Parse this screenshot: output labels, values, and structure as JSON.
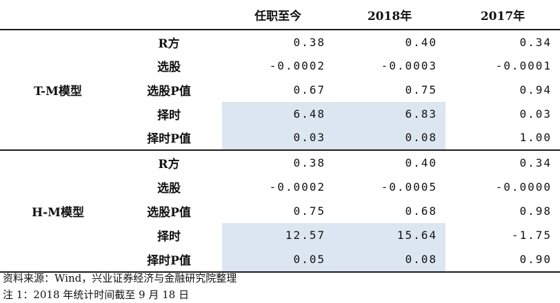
{
  "header": {
    "col0": "",
    "col1": "",
    "col2": "任职至今",
    "col3": "2018年",
    "col4": "2017年"
  },
  "blocks": [
    {
      "model": "T-M模型",
      "rows": [
        {
          "metric": "R方",
          "v": [
            "0.38",
            "0.40",
            "0.34"
          ],
          "shaded": false
        },
        {
          "metric": "选股",
          "v": [
            "-0.0002",
            "-0.0003",
            "-0.0001"
          ],
          "shaded": false
        },
        {
          "metric": "选股P值",
          "v": [
            "0.67",
            "0.75",
            "0.94"
          ],
          "shaded": false
        },
        {
          "metric": "择时",
          "v": [
            "6.48",
            "6.83",
            "0.03"
          ],
          "shaded": true
        },
        {
          "metric": "择时P值",
          "v": [
            "0.03",
            "0.08",
            "1.00"
          ],
          "shaded": true
        }
      ]
    },
    {
      "model": "H-M模型",
      "rows": [
        {
          "metric": "R方",
          "v": [
            "0.38",
            "0.40",
            "0.34"
          ],
          "shaded": false
        },
        {
          "metric": "选股",
          "v": [
            "-0.0002",
            "-0.0005",
            "-0.0000"
          ],
          "shaded": false
        },
        {
          "metric": "选股P值",
          "v": [
            "0.75",
            "0.68",
            "0.98"
          ],
          "shaded": false
        },
        {
          "metric": "择时",
          "v": [
            "12.57",
            "15.64",
            "-1.75"
          ],
          "shaded": true
        },
        {
          "metric": "择时P值",
          "v": [
            "0.05",
            "0.08",
            "0.90"
          ],
          "shaded": true
        }
      ]
    }
  ],
  "notes": {
    "source": "资料来源：Wind，兴业证券经济与金融研究院整理",
    "note1": "注 1：2018 年统计时间截至 9 月 18 日"
  },
  "colors": {
    "shade": "#dce6f1",
    "rule": "#1a1a1a"
  }
}
